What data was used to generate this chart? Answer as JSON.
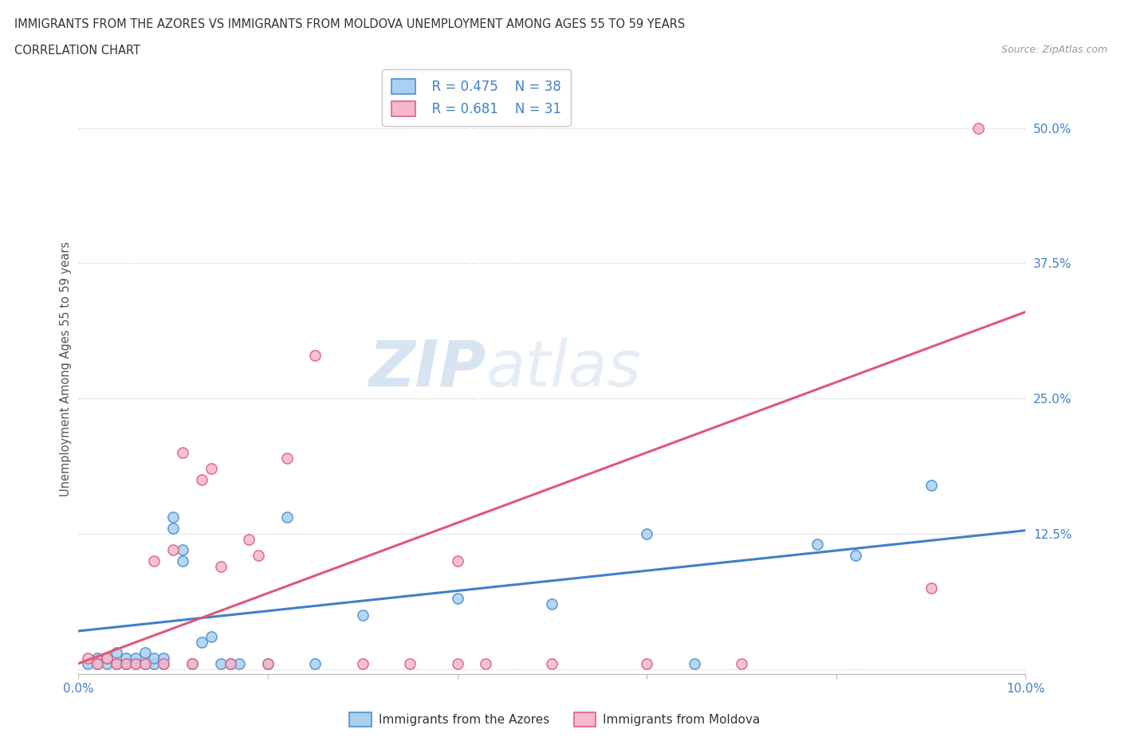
{
  "title_line1": "IMMIGRANTS FROM THE AZORES VS IMMIGRANTS FROM MOLDOVA UNEMPLOYMENT AMONG AGES 55 TO 59 YEARS",
  "title_line2": "CORRELATION CHART",
  "source_text": "Source: ZipAtlas.com",
  "ylabel": "Unemployment Among Ages 55 to 59 years",
  "xlim": [
    0,
    0.1
  ],
  "ylim": [
    -0.005,
    0.56
  ],
  "yticks": [
    0.0,
    0.125,
    0.25,
    0.375,
    0.5
  ],
  "ytick_labels": [
    "",
    "12.5%",
    "25.0%",
    "37.5%",
    "50.0%"
  ],
  "xticks": [
    0.0,
    0.02,
    0.04,
    0.06,
    0.08,
    0.1
  ],
  "xtick_labels": [
    "0.0%",
    "",
    "",
    "",
    "",
    "10.0%"
  ],
  "watermark_zip": "ZIP",
  "watermark_atlas": "atlas",
  "legend_r1": "R = 0.475",
  "legend_n1": "N = 38",
  "legend_r2": "R = 0.681",
  "legend_n2": "N = 31",
  "blue_color": "#a8d0f0",
  "pink_color": "#f5b8cc",
  "blue_edge_color": "#5090d0",
  "pink_edge_color": "#e06080",
  "blue_line_color": "#4080c8",
  "pink_line_color": "#e05878",
  "blue_scatter": [
    [
      0.001,
      0.005
    ],
    [
      0.002,
      0.01
    ],
    [
      0.002,
      0.005
    ],
    [
      0.003,
      0.005
    ],
    [
      0.003,
      0.01
    ],
    [
      0.004,
      0.005
    ],
    [
      0.004,
      0.015
    ],
    [
      0.005,
      0.005
    ],
    [
      0.005,
      0.01
    ],
    [
      0.006,
      0.005
    ],
    [
      0.006,
      0.01
    ],
    [
      0.007,
      0.005
    ],
    [
      0.007,
      0.015
    ],
    [
      0.008,
      0.005
    ],
    [
      0.008,
      0.01
    ],
    [
      0.009,
      0.005
    ],
    [
      0.009,
      0.01
    ],
    [
      0.01,
      0.13
    ],
    [
      0.01,
      0.14
    ],
    [
      0.011,
      0.11
    ],
    [
      0.011,
      0.1
    ],
    [
      0.012,
      0.005
    ],
    [
      0.013,
      0.025
    ],
    [
      0.014,
      0.03
    ],
    [
      0.015,
      0.005
    ],
    [
      0.016,
      0.005
    ],
    [
      0.017,
      0.005
    ],
    [
      0.02,
      0.005
    ],
    [
      0.022,
      0.14
    ],
    [
      0.025,
      0.005
    ],
    [
      0.03,
      0.05
    ],
    [
      0.04,
      0.065
    ],
    [
      0.05,
      0.06
    ],
    [
      0.06,
      0.125
    ],
    [
      0.065,
      0.005
    ],
    [
      0.078,
      0.115
    ],
    [
      0.082,
      0.105
    ],
    [
      0.09,
      0.17
    ]
  ],
  "pink_scatter": [
    [
      0.001,
      0.01
    ],
    [
      0.002,
      0.005
    ],
    [
      0.003,
      0.01
    ],
    [
      0.004,
      0.005
    ],
    [
      0.005,
      0.005
    ],
    [
      0.006,
      0.005
    ],
    [
      0.007,
      0.005
    ],
    [
      0.008,
      0.1
    ],
    [
      0.009,
      0.005
    ],
    [
      0.01,
      0.11
    ],
    [
      0.011,
      0.2
    ],
    [
      0.012,
      0.005
    ],
    [
      0.013,
      0.175
    ],
    [
      0.014,
      0.185
    ],
    [
      0.015,
      0.095
    ],
    [
      0.016,
      0.005
    ],
    [
      0.018,
      0.12
    ],
    [
      0.019,
      0.105
    ],
    [
      0.02,
      0.005
    ],
    [
      0.022,
      0.195
    ],
    [
      0.025,
      0.29
    ],
    [
      0.03,
      0.005
    ],
    [
      0.035,
      0.005
    ],
    [
      0.04,
      0.005
    ],
    [
      0.04,
      0.1
    ],
    [
      0.043,
      0.005
    ],
    [
      0.05,
      0.005
    ],
    [
      0.06,
      0.005
    ],
    [
      0.07,
      0.005
    ],
    [
      0.09,
      0.075
    ],
    [
      0.095,
      0.5
    ]
  ],
  "blue_line": [
    [
      0.0,
      0.035
    ],
    [
      0.1,
      0.128
    ]
  ],
  "pink_line": [
    [
      0.0,
      0.005
    ],
    [
      0.1,
      0.33
    ]
  ],
  "background_color": "#ffffff",
  "grid_color": "#bbbbbb"
}
